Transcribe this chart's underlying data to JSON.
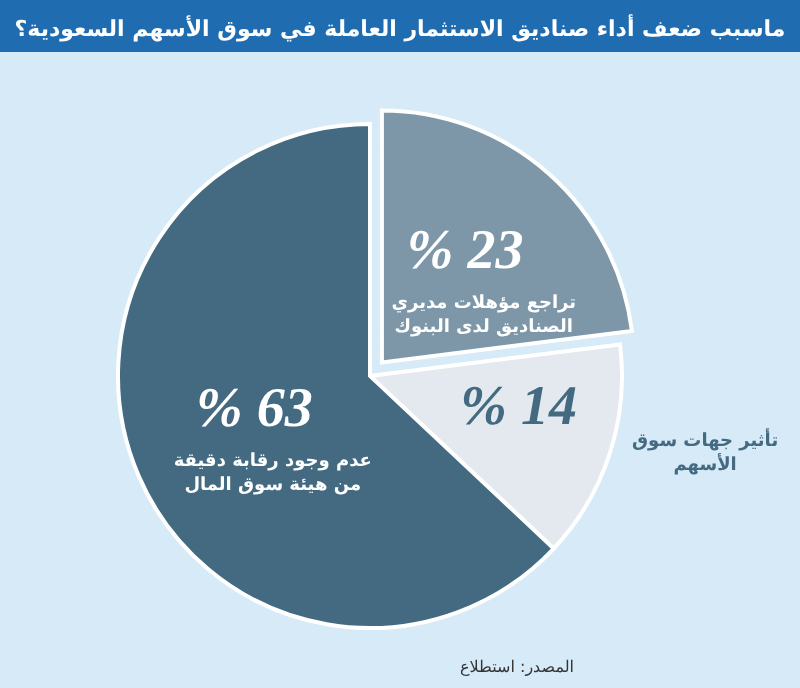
{
  "chart_data": {
    "type": "pie",
    "title": "ماسبب ضعف أداء صناديق الاستثمار العاملة في سوق الأسهم السعودية؟",
    "categories": [
      "تراجع مؤهلات مديري الصناديق لدى البنوك",
      "تأثير جهات سوق الأسهم",
      "عدم وجود رقابة دقيقة من هيئة سوق المال"
    ],
    "values": [
      23,
      14,
      63
    ],
    "value_labels": [
      "% 23",
      "% 14",
      "% 63"
    ],
    "colors": [
      "#7d97a8",
      "#e3e9ee",
      "#436a80"
    ],
    "annotations": [
      "المصدر: استطلاع"
    ]
  }
}
